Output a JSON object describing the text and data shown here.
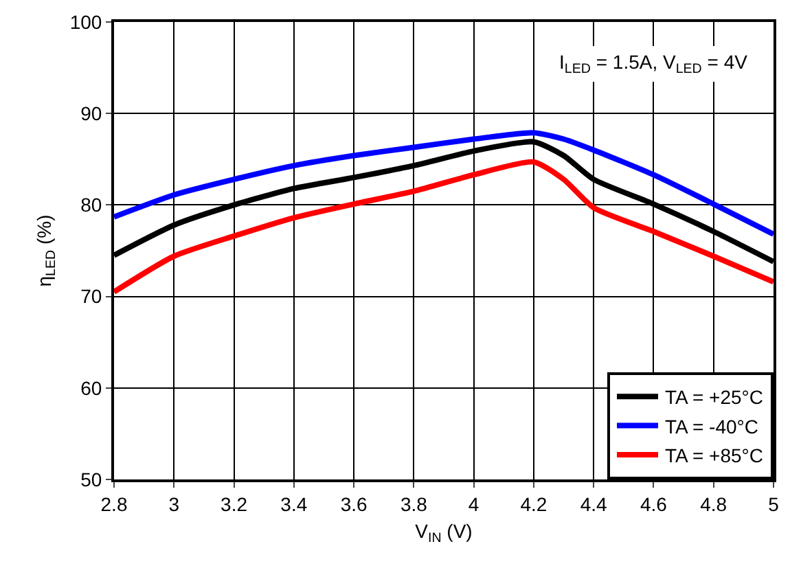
{
  "chart_data": {
    "type": "line",
    "xlabel": "V$_{IN}$ (V)",
    "ylabel": "η$_{LED}$ (%)",
    "annotations": [
      "I$_{LED}$ = 1.5A, V$_{LED}$ = 4V"
    ],
    "x": [
      2.8,
      3.0,
      3.2,
      3.4,
      3.6,
      3.8,
      4.0,
      4.2,
      4.3,
      4.4,
      4.6,
      4.8,
      5.0
    ],
    "series": [
      {
        "name": "TA = +25°C",
        "color": "#000000",
        "values": [
          74.5,
          77.8,
          80.0,
          81.8,
          83.0,
          84.3,
          85.9,
          86.9,
          85.4,
          82.8,
          80.1,
          77.1,
          73.8
        ]
      },
      {
        "name": "TA = -40°C",
        "color": "#0000ff",
        "values": [
          78.7,
          81.1,
          82.8,
          84.3,
          85.4,
          86.3,
          87.2,
          87.9,
          87.2,
          86.0,
          83.3,
          80.1,
          76.8
        ]
      },
      {
        "name": "TA = +85°C",
        "color": "#ff0000",
        "values": [
          70.5,
          74.4,
          76.6,
          78.6,
          80.1,
          81.5,
          83.3,
          84.7,
          82.8,
          79.7,
          77.1,
          74.4,
          71.6
        ]
      }
    ],
    "xlim": [
      2.8,
      5
    ],
    "xticks": [
      2.8,
      3,
      3.2,
      3.4,
      3.6,
      3.8,
      4,
      4.2,
      4.4,
      4.6,
      4.8,
      5
    ],
    "ylim": [
      50,
      100
    ],
    "yticks": [
      50,
      60,
      70,
      80,
      90,
      100
    ],
    "grid": true,
    "legend": "bottom right",
    "marker": "none",
    "line_style": "solid"
  }
}
